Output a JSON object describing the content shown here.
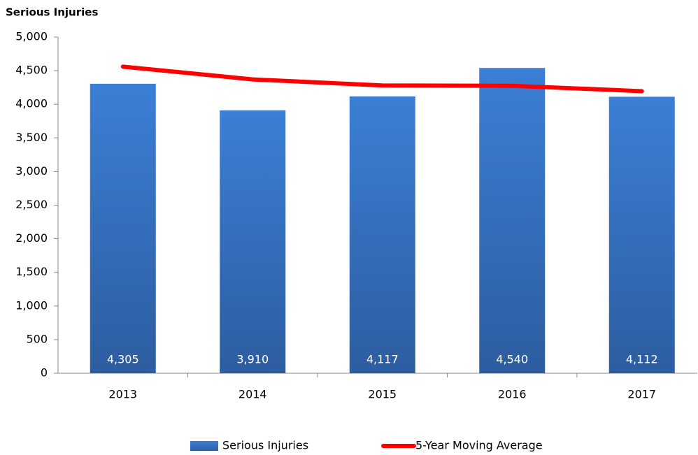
{
  "chart_data": {
    "type": "bar",
    "title": "Serious Injuries",
    "categories": [
      "2013",
      "2014",
      "2015",
      "2016",
      "2017"
    ],
    "series": [
      {
        "name": "Serious Injuries",
        "type": "bar",
        "color": "#3a78cc",
        "values": [
          4305,
          3910,
          4117,
          4540,
          4112
        ],
        "value_labels": [
          "4,305",
          "3,910",
          "4,117",
          "4,540",
          "4,112"
        ]
      },
      {
        "name": "5-Year Moving Average",
        "type": "line",
        "color": "#ff0000",
        "values": [
          4560,
          4370,
          4280,
          4275,
          4195
        ]
      }
    ],
    "ylim": [
      0,
      5000
    ],
    "yticks": [
      0,
      500,
      {
        "value": 1000,
        "label": "1,000"
      },
      {
        "value": 1500,
        "label": "1,500"
      },
      {
        "value": 2000,
        "label": "2,000"
      },
      {
        "value": 2500,
        "label": "2,500"
      },
      {
        "value": 3000,
        "label": "3,000"
      },
      {
        "value": 3500,
        "label": "3,500"
      },
      {
        "value": 4000,
        "label": "4,000"
      },
      {
        "value": 4500,
        "label": "4,500"
      },
      {
        "value": 5000,
        "label": "5,000"
      }
    ],
    "grid": false,
    "legend": "bottom"
  }
}
